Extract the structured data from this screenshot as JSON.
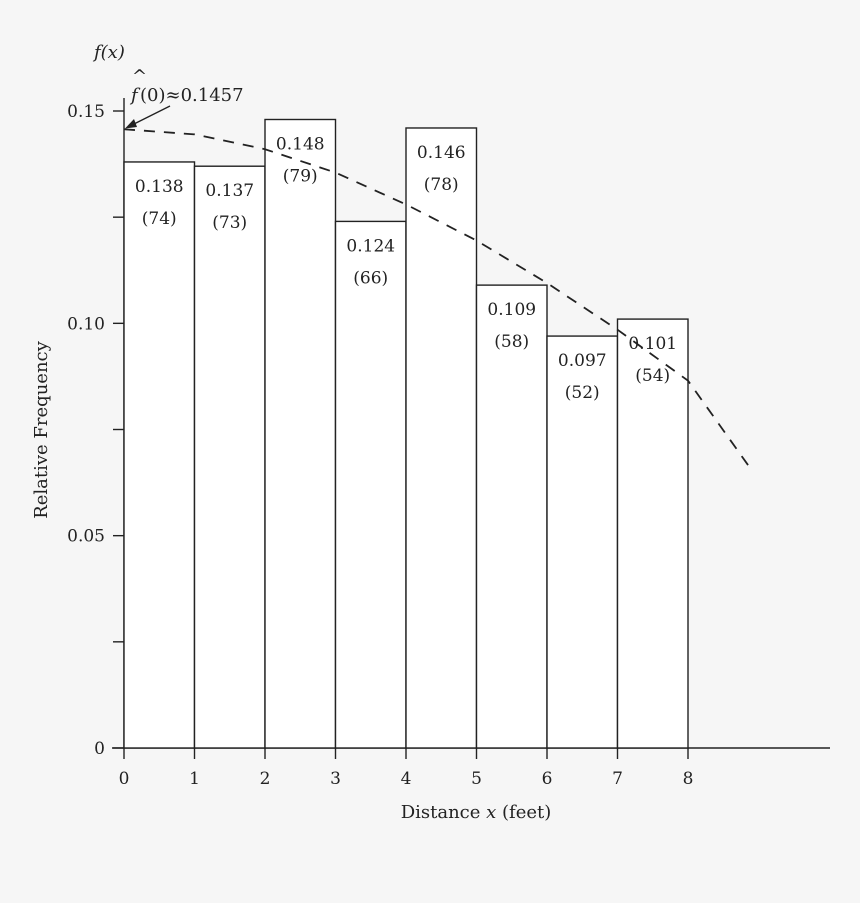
{
  "chart_data": {
    "type": "bar",
    "ylabel": "Relative Frequency",
    "ylabel_top": "f(x)",
    "xlabel_prefix": "Distance ",
    "xlabel_var": "x",
    "xlabel_suffix": " (feet)",
    "bins": [
      {
        "x0": 0,
        "x1": 1,
        "value": 0.138,
        "label": "0.138",
        "count_label": "(74)"
      },
      {
        "x0": 1,
        "x1": 2,
        "value": 0.137,
        "label": "0.137",
        "count_label": "(73)"
      },
      {
        "x0": 2,
        "x1": 3,
        "value": 0.148,
        "label": "0.148",
        "count_label": "(79)"
      },
      {
        "x0": 3,
        "x1": 4,
        "value": 0.124,
        "label": "0.124",
        "count_label": "(66)"
      },
      {
        "x0": 4,
        "x1": 5,
        "value": 0.146,
        "label": "0.146",
        "count_label": "(78)"
      },
      {
        "x0": 5,
        "x1": 6,
        "value": 0.109,
        "label": "0.109",
        "count_label": "(58)"
      },
      {
        "x0": 6,
        "x1": 7,
        "value": 0.097,
        "label": "0.097",
        "count_label": "(52)"
      },
      {
        "x0": 7,
        "x1": 8,
        "value": 0.101,
        "label": "0.101",
        "count_label": "(54)"
      }
    ],
    "xticks": [
      "0",
      "1",
      "2",
      "3",
      "4",
      "5",
      "6",
      "7",
      "8"
    ],
    "yticks": [
      {
        "value": 0,
        "label": "0"
      },
      {
        "value": 0.025,
        "label": ""
      },
      {
        "value": 0.05,
        "label": "0.05"
      },
      {
        "value": 0.075,
        "label": ""
      },
      {
        "value": 0.1,
        "label": "0.10"
      },
      {
        "value": 0.125,
        "label": ""
      },
      {
        "value": 0.15,
        "label": "0.15"
      }
    ],
    "xlim": [
      0,
      10
    ],
    "ylim": [
      0,
      0.15
    ],
    "fitted_curve": {
      "style": "dashed",
      "x": [
        0,
        1,
        2,
        3,
        4,
        5,
        6,
        7,
        8,
        8.9
      ],
      "y": [
        0.1457,
        0.1445,
        0.141,
        0.1355,
        0.128,
        0.1195,
        0.1095,
        0.0985,
        0.0865,
        0.0655
      ]
    },
    "annotation": {
      "text": "(0)≈0.1457",
      "hat_symbol": "f",
      "points_to": {
        "x": 0,
        "y": 0.1457
      }
    },
    "grid": false
  }
}
